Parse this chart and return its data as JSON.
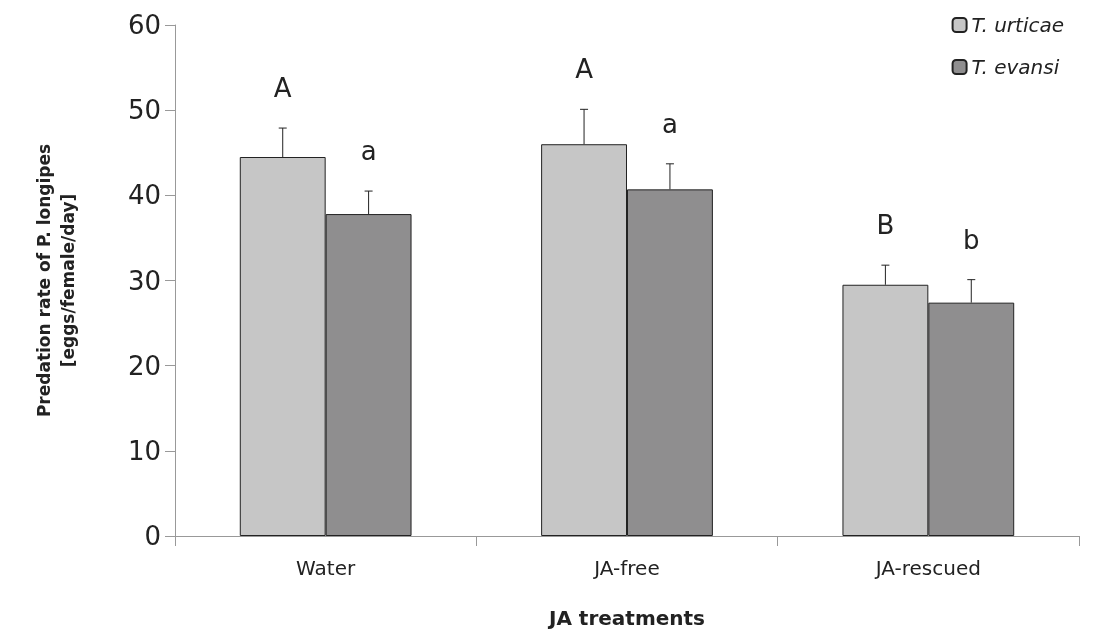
{
  "chart_data": {
    "type": "bar",
    "xlabel": "JA treatments",
    "ylabel": "Predation rate of P. longipes\n[eggs/female/day]",
    "categories": [
      "Water",
      "JA-free",
      "JA-rescued"
    ],
    "series": [
      {
        "name": "T. urticae",
        "color": "#c6c6c6",
        "values": [
          44.5,
          46.0,
          29.5
        ],
        "errors": [
          3.4,
          4.1,
          2.3
        ]
      },
      {
        "name": "T. evansi",
        "color": "#8f8e8f",
        "values": [
          37.8,
          40.7,
          27.4
        ],
        "errors": [
          2.7,
          3.0,
          2.7
        ]
      }
    ],
    "ylim": [
      0,
      60
    ],
    "yticks": [
      0,
      10,
      20,
      30,
      40,
      50,
      60
    ],
    "grid": false,
    "legend": "top right",
    "annotations": [
      "A",
      "a",
      "A",
      "a",
      "B",
      "b"
    ]
  }
}
